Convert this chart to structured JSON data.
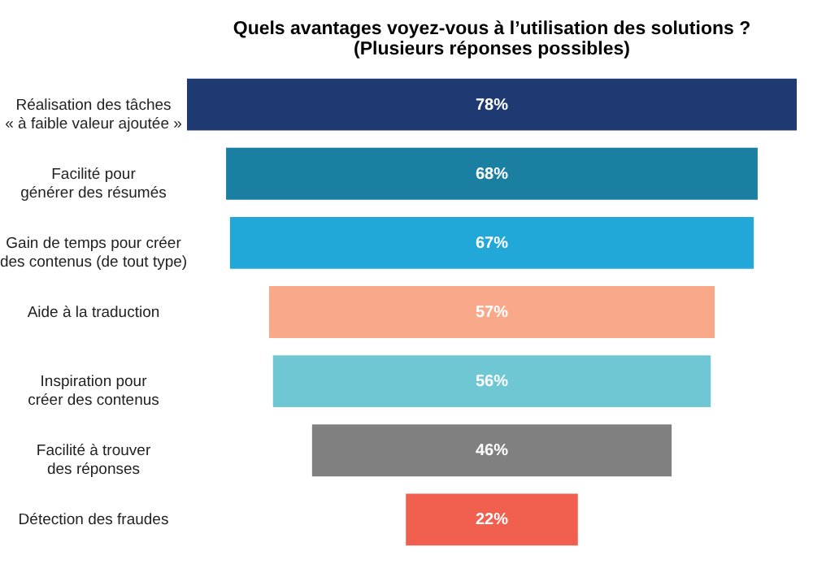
{
  "chart_data": {
    "type": "other",
    "title": "Quels avantages voyez-vous à l’utilisation des solutions ?",
    "subtitle": "(Plusieurs réponses possibles)",
    "categories": [
      "Réalisation des tâches\n« à faible valeur ajoutée »",
      "Facilité pour\ngénérer des résumés",
      "Gain de temps pour créer\ndes contenus (de tout type)",
      "Aide à la traduction",
      "Inspiration pour\ncréer des contenus",
      "Facilité à trouver\ndes réponses",
      "Détection des fraudes"
    ],
    "values": [
      78,
      68,
      67,
      57,
      56,
      46,
      22
    ],
    "value_labels": [
      "78%",
      "68%",
      "67%",
      "57%",
      "56%",
      "46%",
      "22%"
    ],
    "colors": [
      "#1f3a73",
      "#1a7fa0",
      "#21a8d8",
      "#f9a98a",
      "#6fc7d3",
      "#808080",
      "#f15f4e"
    ]
  }
}
